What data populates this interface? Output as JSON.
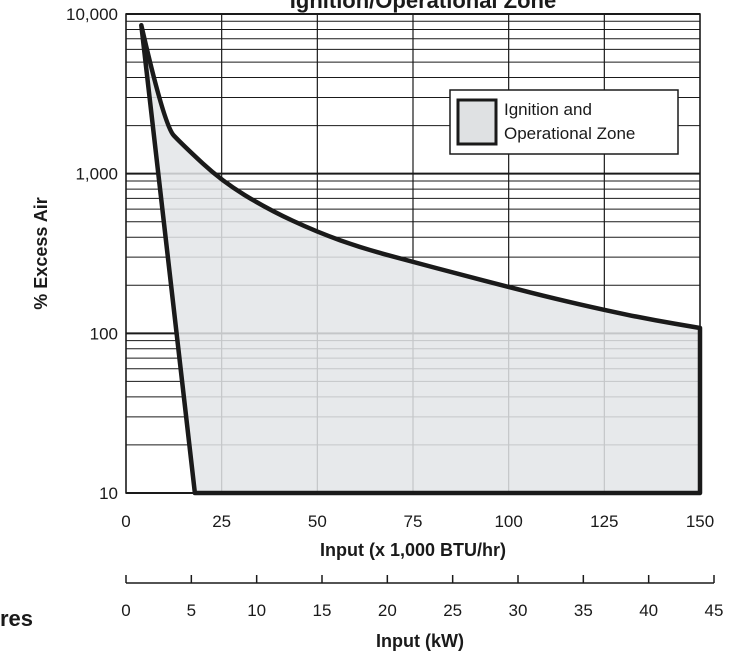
{
  "chart_data": {
    "type": "area",
    "title": "Ignition/Operational Zone",
    "xlabel": "Input (x 1,000 BTU/hr)",
    "ylabel": "% Excess Air",
    "x2label": "Input (kW)",
    "xlim": [
      0,
      150
    ],
    "ylim": [
      10,
      10000
    ],
    "yscale": "log",
    "x2lim": [
      0,
      45
    ],
    "xticks": [
      0,
      25,
      50,
      75,
      100,
      125,
      150
    ],
    "yticks": [
      10,
      100,
      1000,
      10000
    ],
    "yticklabels": [
      "10",
      "100",
      "1,000",
      "10,000"
    ],
    "x2ticks": [
      0,
      5,
      10,
      15,
      20,
      25,
      30,
      35,
      40,
      45
    ],
    "grid": true,
    "legend": {
      "label": "Ignition and Operational Zone",
      "label_lines": [
        "Ignition and",
        "Operational Zone"
      ],
      "placement": "top-right",
      "swatch_color": "#dfe1e3"
    },
    "zone_fill_color": "#e3e5e7",
    "series": [
      {
        "name": "Ignition and Operational Zone",
        "upper_boundary": {
          "x": [
            4,
            10,
            15,
            25,
            37,
            50,
            62,
            75,
            87,
            100,
            112,
            125,
            137,
            150
          ],
          "y": [
            8500,
            2000,
            1500,
            900,
            600,
            430,
            340,
            280,
            235,
            195,
            165,
            140,
            122,
            108
          ]
        },
        "left_boundary": {
          "x": [
            4,
            18
          ],
          "y": [
            8500,
            10
          ]
        },
        "lower_boundary": {
          "x": [
            18,
            150
          ],
          "y": [
            10,
            10
          ]
        },
        "right_boundary": {
          "x": [
            150,
            150
          ],
          "y": [
            10,
            108
          ]
        }
      }
    ],
    "fragment_text": "res"
  }
}
